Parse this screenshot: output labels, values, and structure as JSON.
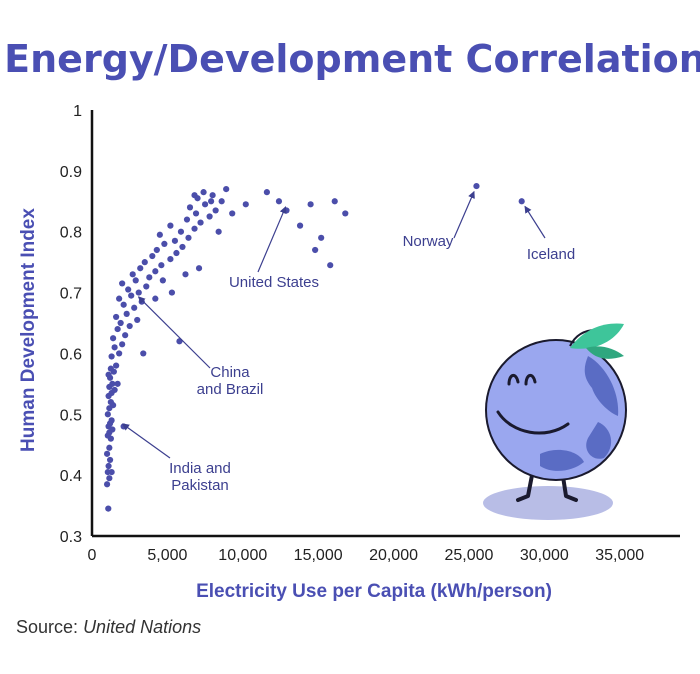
{
  "colors": {
    "accent": "#4a4fb3",
    "point": "#4b4eaa",
    "annotation": "#3c3f8f",
    "axis": "#111111",
    "mascot_body": "#9aa7ef",
    "mascot_land": "#5a6cc4",
    "mascot_leaf": "#3ec59a",
    "mascot_shadow": "#b8bde6"
  },
  "source": {
    "label": "Source:",
    "value": "United Nations"
  },
  "chart_data": {
    "type": "scatter",
    "title": "Energy/Development Correlation",
    "xlabel": "Electricity Use per Capita  (kWh/person)",
    "ylabel": "Human Development Index",
    "xlim": [
      0,
      39000
    ],
    "ylim": [
      0.3,
      1.0
    ],
    "xticks": [
      0,
      5000,
      10000,
      15000,
      20000,
      25000,
      30000,
      35000
    ],
    "xtick_labels": [
      "0",
      "5,000",
      "10,000",
      "15,000",
      "20,000",
      "25,000",
      "30,000",
      "35,000"
    ],
    "yticks": [
      0.3,
      0.4,
      0.5,
      0.6,
      0.7,
      0.8,
      0.9,
      1.0
    ],
    "ytick_labels": [
      "0.3",
      "0.4",
      "0.5",
      "0.6",
      "0.7",
      "0.8",
      "0.9",
      "1"
    ],
    "grid": false,
    "points": [
      [
        1080,
        0.345
      ],
      [
        1000,
        0.385
      ],
      [
        1150,
        0.395
      ],
      [
        1050,
        0.405
      ],
      [
        1300,
        0.405
      ],
      [
        1100,
        0.415
      ],
      [
        1200,
        0.425
      ],
      [
        1000,
        0.435
      ],
      [
        1150,
        0.445
      ],
      [
        1250,
        0.46
      ],
      [
        1050,
        0.465
      ],
      [
        1150,
        0.47
      ],
      [
        1350,
        0.475
      ],
      [
        1100,
        0.48
      ],
      [
        1200,
        0.485
      ],
      [
        1300,
        0.49
      ],
      [
        1050,
        0.5
      ],
      [
        1150,
        0.51
      ],
      [
        1400,
        0.515
      ],
      [
        1250,
        0.52
      ],
      [
        1100,
        0.53
      ],
      [
        1300,
        0.535
      ],
      [
        1500,
        0.54
      ],
      [
        1150,
        0.545
      ],
      [
        1350,
        0.55
      ],
      [
        1200,
        0.56
      ],
      [
        1100,
        0.565
      ],
      [
        1450,
        0.57
      ],
      [
        1250,
        0.575
      ],
      [
        1600,
        0.58
      ],
      [
        1300,
        0.595
      ],
      [
        1800,
        0.6
      ],
      [
        1500,
        0.61
      ],
      [
        2000,
        0.615
      ],
      [
        1400,
        0.625
      ],
      [
        2200,
        0.63
      ],
      [
        1700,
        0.64
      ],
      [
        2500,
        0.645
      ],
      [
        1900,
        0.65
      ],
      [
        3000,
        0.655
      ],
      [
        1600,
        0.66
      ],
      [
        2300,
        0.665
      ],
      [
        2800,
        0.675
      ],
      [
        2100,
        0.68
      ],
      [
        3300,
        0.685
      ],
      [
        1800,
        0.69
      ],
      [
        2600,
        0.695
      ],
      [
        3100,
        0.7
      ],
      [
        2400,
        0.705
      ],
      [
        3600,
        0.71
      ],
      [
        2000,
        0.715
      ],
      [
        2900,
        0.72
      ],
      [
        3800,
        0.725
      ],
      [
        2700,
        0.73
      ],
      [
        4200,
        0.735
      ],
      [
        3200,
        0.74
      ],
      [
        4600,
        0.745
      ],
      [
        3500,
        0.75
      ],
      [
        5200,
        0.755
      ],
      [
        4000,
        0.76
      ],
      [
        5600,
        0.765
      ],
      [
        4300,
        0.77
      ],
      [
        6000,
        0.775
      ],
      [
        4800,
        0.78
      ],
      [
        5500,
        0.785
      ],
      [
        6400,
        0.79
      ],
      [
        4500,
        0.795
      ],
      [
        5900,
        0.8
      ],
      [
        6800,
        0.805
      ],
      [
        5200,
        0.81
      ],
      [
        7200,
        0.815
      ],
      [
        6300,
        0.82
      ],
      [
        7800,
        0.825
      ],
      [
        6900,
        0.83
      ],
      [
        8200,
        0.835
      ],
      [
        6500,
        0.84
      ],
      [
        7500,
        0.845
      ],
      [
        8600,
        0.85
      ],
      [
        7000,
        0.855
      ],
      [
        8000,
        0.86
      ],
      [
        7400,
        0.865
      ],
      [
        8900,
        0.87
      ],
      [
        7900,
        0.85
      ],
      [
        9300,
        0.83
      ],
      [
        6800,
        0.86
      ],
      [
        5800,
        0.62
      ],
      [
        4200,
        0.69
      ],
      [
        3400,
        0.6
      ],
      [
        2100,
        0.48
      ],
      [
        1700,
        0.55
      ],
      [
        6200,
        0.73
      ],
      [
        5300,
        0.7
      ],
      [
        4700,
        0.72
      ],
      [
        7100,
        0.74
      ],
      [
        8400,
        0.8
      ],
      [
        10200,
        0.845
      ],
      [
        11600,
        0.865
      ],
      [
        12900,
        0.835
      ],
      [
        12400,
        0.85
      ],
      [
        14500,
        0.845
      ],
      [
        15200,
        0.79
      ],
      [
        14800,
        0.77
      ],
      [
        15800,
        0.745
      ],
      [
        16100,
        0.85
      ],
      [
        16800,
        0.83
      ],
      [
        13800,
        0.81
      ],
      [
        25500,
        0.875
      ],
      [
        28500,
        0.85
      ]
    ],
    "annotations": [
      {
        "text": [
          "United States"
        ],
        "x": 13000,
        "y": 0.85
      },
      {
        "text": [
          "Norway"
        ],
        "x": 25500,
        "y": 0.875
      },
      {
        "text": [
          "Iceland"
        ],
        "x": 28500,
        "y": 0.85
      },
      {
        "text": [
          "China",
          "and Brazil"
        ],
        "x": 2800,
        "y": 0.7
      },
      {
        "text": [
          "India and",
          "Pakistan"
        ],
        "x": 1700,
        "y": 0.49
      }
    ]
  }
}
